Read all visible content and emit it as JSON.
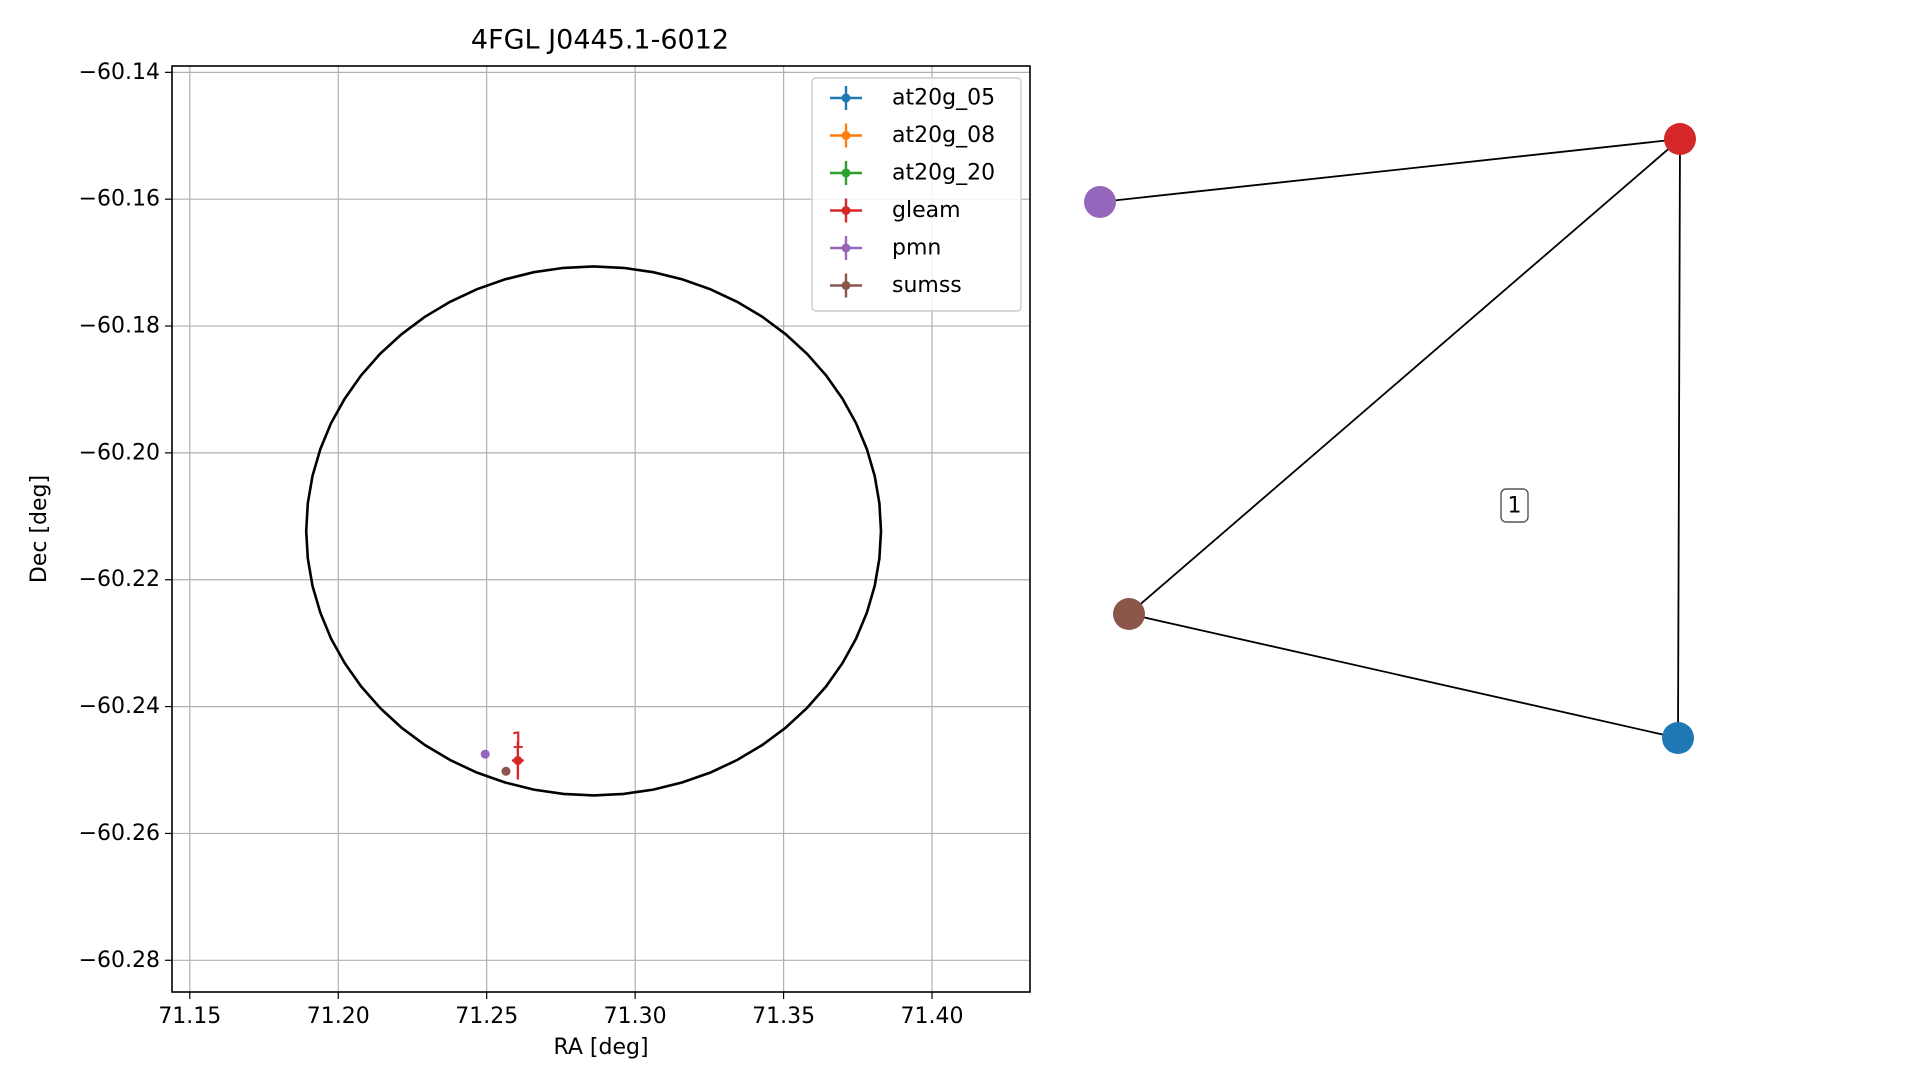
{
  "chart_data": [
    {
      "type": "scatter",
      "title": "4FGL J0445.1-6012",
      "xlabel": "RA [deg]",
      "ylabel": "Dec [deg]",
      "xlim": [
        71.144,
        71.433
      ],
      "ylim": [
        -60.285,
        -60.139
      ],
      "grid": true,
      "xticks": [
        71.15,
        71.2,
        71.25,
        71.3,
        71.35,
        71.4
      ],
      "xtick_labels": [
        "71.15",
        "71.20",
        "71.25",
        "71.30",
        "71.35",
        "71.40"
      ],
      "yticks": [
        -60.14,
        -60.16,
        -60.18,
        -60.2,
        -60.22,
        -60.24,
        -60.26,
        -60.28
      ],
      "ytick_labels": [
        "−60.14",
        "−60.16",
        "−60.18",
        "−60.20",
        "−60.22",
        "−60.24",
        "−60.26",
        "−60.28"
      ],
      "legend_position": "upper right",
      "ellipse": {
        "ra": 71.286,
        "dec": -60.2123,
        "semi_ra": 0.0968,
        "semi_dec": 0.0417,
        "color": "#000000"
      },
      "series": [
        {
          "name": "at20g_05",
          "color": "#1f77b4",
          "points": []
        },
        {
          "name": "at20g_08",
          "color": "#ff7f0e",
          "points": []
        },
        {
          "name": "at20g_20",
          "color": "#2ca02c",
          "points": []
        },
        {
          "name": "gleam",
          "color": "#d62728",
          "points": [
            {
              "ra": 71.2605,
              "dec": -60.2485,
              "ra_err": 0.002,
              "dec_err": 0.003
            }
          ]
        },
        {
          "name": "pmn",
          "color": "#9467bd",
          "points": [
            {
              "ra": 71.2495,
              "dec": -60.2475,
              "ra_err": 0.0,
              "dec_err": 0.0
            }
          ]
        },
        {
          "name": "sumss",
          "color": "#8c564b",
          "points": [
            {
              "ra": 71.2565,
              "dec": -60.2502,
              "ra_err": 0.0015,
              "dec_err": 0.0005
            }
          ]
        }
      ],
      "annotations": [
        {
          "text": "1",
          "ra": 71.2605,
          "dec": -60.2455,
          "color": "#d62728"
        }
      ]
    },
    {
      "type": "network",
      "nodes": [
        {
          "id": "pmn",
          "color": "#9467bd"
        },
        {
          "id": "gleam",
          "color": "#d62728"
        },
        {
          "id": "sumss",
          "color": "#8c564b"
        },
        {
          "id": "at20g_05",
          "color": "#1f77b4"
        }
      ],
      "edges": [
        [
          "pmn",
          "gleam"
        ],
        [
          "gleam",
          "sumss"
        ],
        [
          "gleam",
          "at20g_05"
        ],
        [
          "sumss",
          "at20g_05"
        ]
      ],
      "labels": [
        {
          "text": "1"
        }
      ]
    }
  ]
}
